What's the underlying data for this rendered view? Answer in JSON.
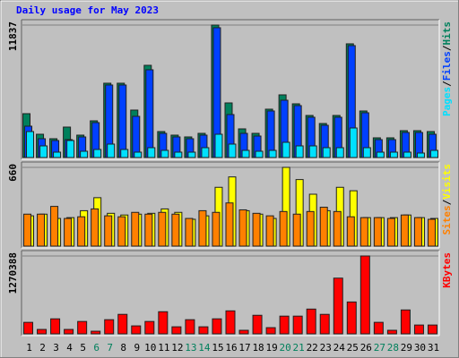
{
  "chart_data": {
    "type": "bar",
    "title": "Daily usage for May 2023",
    "categories": [
      "1",
      "2",
      "3",
      "4",
      "5",
      "6",
      "7",
      "8",
      "9",
      "10",
      "11",
      "12",
      "13",
      "14",
      "15",
      "16",
      "17",
      "18",
      "19",
      "20",
      "21",
      "22",
      "23",
      "24",
      "25",
      "26",
      "27",
      "28",
      "29",
      "30",
      "31"
    ],
    "category_colors": [
      "#000000",
      "#000000",
      "#000000",
      "#000000",
      "#000000",
      "#00805c",
      "#00805c",
      "#000000",
      "#000000",
      "#000000",
      "#000000",
      "#000000",
      "#00805c",
      "#00805c",
      "#000000",
      "#000000",
      "#000000",
      "#000000",
      "#000000",
      "#00805c",
      "#00805c",
      "#000000",
      "#000000",
      "#000000",
      "#000000",
      "#000000",
      "#00805c",
      "#00805c",
      "#000000",
      "#000000",
      "#000000"
    ],
    "legend_separator": "/",
    "panels": [
      {
        "ylim": [
          0,
          11837
        ],
        "yticks": [
          11837
        ],
        "series": [
          {
            "name": "Hits",
            "color": "#00805c",
            "values": [
              3920,
              2080,
              1680,
              2720,
              2000,
              3280,
              6640,
              6640,
              4240,
              8240,
              2320,
              2000,
              1840,
              2160,
              11837,
              4880,
              2560,
              2160,
              4320,
              5600,
              4800,
              3760,
              3040,
              3760,
              10160,
              4160,
              1760,
              1760,
              2400,
              2400,
              2320
            ]
          },
          {
            "name": "Files",
            "color": "#0040ff",
            "values": [
              2800,
              1680,
              1520,
              1600,
              1840,
              3120,
              6480,
              6480,
              3680,
              7840,
              2160,
              1840,
              1680,
              2000,
              11600,
              3840,
              2160,
              1920,
              4160,
              5120,
              4640,
              3600,
              2880,
              3600,
              10000,
              4000,
              1600,
              1600,
              2240,
              2240,
              2080
            ]
          },
          {
            "name": "Pages",
            "color": "#00e0ff",
            "values": [
              2320,
              1040,
              480,
              1520,
              560,
              720,
              1200,
              720,
              480,
              880,
              640,
              480,
              480,
              880,
              2080,
              1200,
              640,
              560,
              640,
              1360,
              1040,
              1040,
              880,
              880,
              2640,
              880,
              480,
              480,
              480,
              400,
              640
            ]
          }
        ]
      },
      {
        "ylim": [
          0,
          660
        ],
        "yticks": [
          660
        ],
        "series": [
          {
            "name": "Visits",
            "color": "#ffff00",
            "values": [
              254,
              268,
              232,
              239,
              297,
              406,
              275,
              261,
              268,
              275,
              312,
              283,
              225,
              254,
              493,
              580,
              297,
              268,
              232,
              660,
              558,
              435,
              297,
              493,
              464,
              239,
              239,
              239,
              261,
              239,
              232
            ]
          },
          {
            "name": "Sites",
            "color": "#ff8000",
            "values": [
              268,
              268,
              333,
              232,
              246,
              312,
              254,
              246,
              283,
              268,
              283,
              268,
              232,
              297,
              283,
              362,
              304,
              275,
              254,
              290,
              268,
              290,
              326,
              290,
              246,
              239,
              239,
              232,
              261,
              239,
              225
            ]
          }
        ]
      },
      {
        "ylim": [
          0,
          1270388
        ],
        "yticks": [
          1270388
        ],
        "series": [
          {
            "name": "KBytes",
            "color": "#ff0000",
            "values": [
              187670,
              72000,
              245000,
              72000,
              202000,
              43000,
              231000,
              318000,
              130000,
              202000,
              361000,
              115000,
              231000,
              115000,
              245000,
              375000,
              58000,
              303000,
              101000,
              289000,
              289000,
              404000,
              318000,
              909000,
              520000,
              1270388,
              188000,
              58000,
              390000,
              144000,
              144000
            ]
          }
        ]
      }
    ]
  }
}
